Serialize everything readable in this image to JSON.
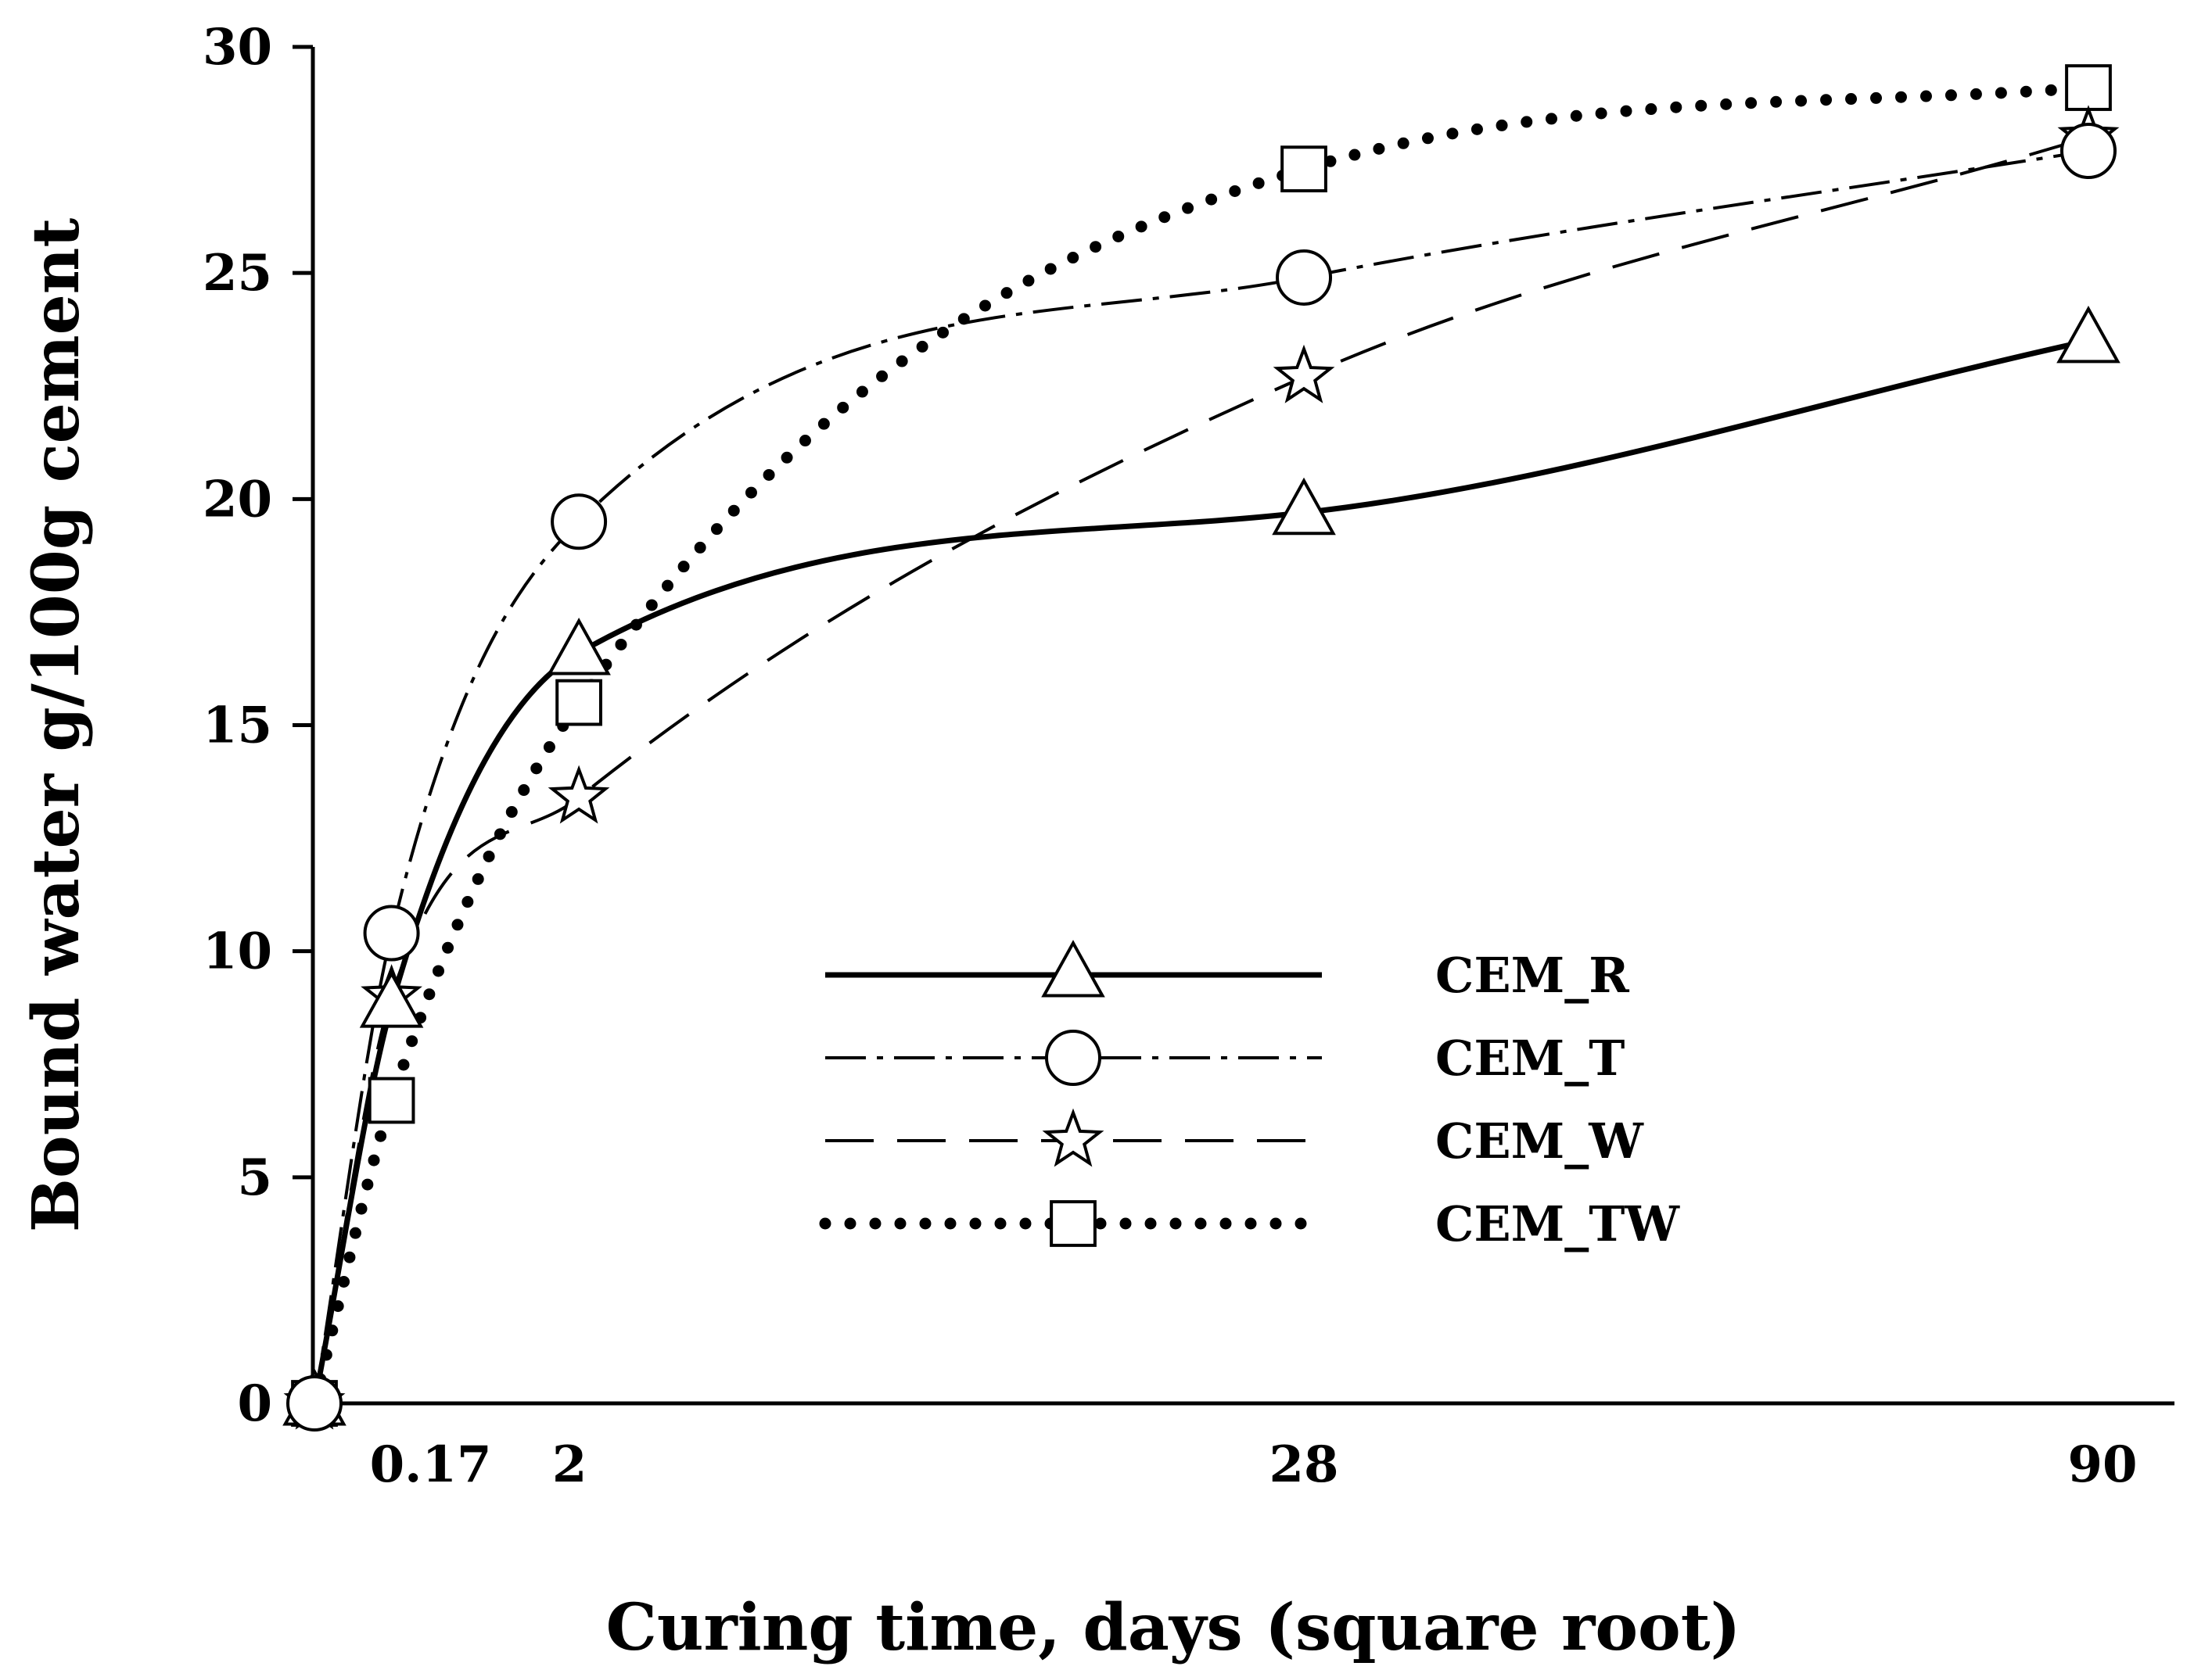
{
  "chart_data": {
    "type": "line",
    "title": "",
    "xlabel": "Curing time, days (square root)",
    "ylabel": "Bound water g/100g cement",
    "x_scale": "sqrt",
    "xlim": [
      0,
      90
    ],
    "ylim": [
      0,
      30
    ],
    "x_ticks": [
      0.17,
      2,
      28,
      90
    ],
    "x_tick_labels": [
      "0.17",
      "2",
      "28",
      "90"
    ],
    "y_ticks": [
      0,
      5,
      10,
      15,
      20,
      25,
      30
    ],
    "y_tick_labels": [
      "0",
      "5",
      "10",
      "15",
      "20",
      "25",
      "30"
    ],
    "grid": false,
    "legend_position": "center-right",
    "x": [
      0,
      0.17,
      2,
      28,
      90
    ],
    "series": [
      {
        "name": "CEM_R",
        "marker": "triangle",
        "line": "solid",
        "values": [
          0,
          8.8,
          16.6,
          19.7,
          23.5
        ]
      },
      {
        "name": "CEM_T",
        "marker": "circle",
        "line": "dashdot",
        "values": [
          0,
          10.4,
          19.5,
          24.9,
          27.7
        ]
      },
      {
        "name": "CEM_W",
        "marker": "star",
        "line": "dashed",
        "values": [
          0,
          9.0,
          13.4,
          22.7,
          28.0
        ]
      },
      {
        "name": "CEM_TW",
        "marker": "square",
        "line": "dotted",
        "values": [
          0,
          6.7,
          15.5,
          27.3,
          29.1
        ]
      }
    ]
  }
}
